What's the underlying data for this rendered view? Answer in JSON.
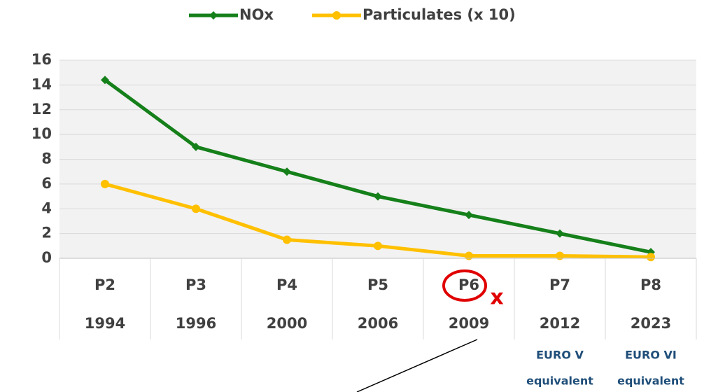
{
  "chart_data": {
    "type": "line",
    "categories": [
      "P2",
      "P3",
      "P4",
      "P5",
      "P6",
      "P7",
      "P8"
    ],
    "years": [
      "1994",
      "1996",
      "2000",
      "2006",
      "2009",
      "2012",
      "2023"
    ],
    "series": [
      {
        "name": "NOx",
        "color": "#15801a",
        "marker": "diamond",
        "values": [
          14.4,
          9,
          7,
          5,
          3.5,
          2,
          0.5
        ]
      },
      {
        "name": "Particulates (x 10)",
        "color": "#ffc000",
        "marker": "circle",
        "values": [
          6,
          4,
          1.5,
          1,
          0.2,
          0.2,
          0.1
        ]
      }
    ],
    "ylim": [
      0,
      16
    ],
    "yticks": [
      0,
      2,
      4,
      6,
      8,
      10,
      12,
      14,
      16
    ],
    "grid": true,
    "legend": "top",
    "annotations": [
      {
        "category": 5,
        "lines": [
          "EURO V",
          "equivalent"
        ]
      },
      {
        "category": 6,
        "lines": [
          "EURO VI",
          "equivalent"
        ]
      }
    ]
  }
}
